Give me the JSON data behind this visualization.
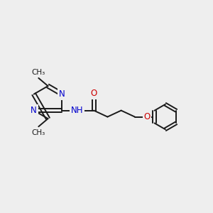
{
  "bg_color": "#eeeeee",
  "bond_color": "#1a1a1a",
  "N_color": "#0000cc",
  "O_color": "#cc0000",
  "lw": 1.4,
  "fs": 8.5,
  "xlim": [
    0,
    10
  ],
  "ylim": [
    0,
    10
  ]
}
